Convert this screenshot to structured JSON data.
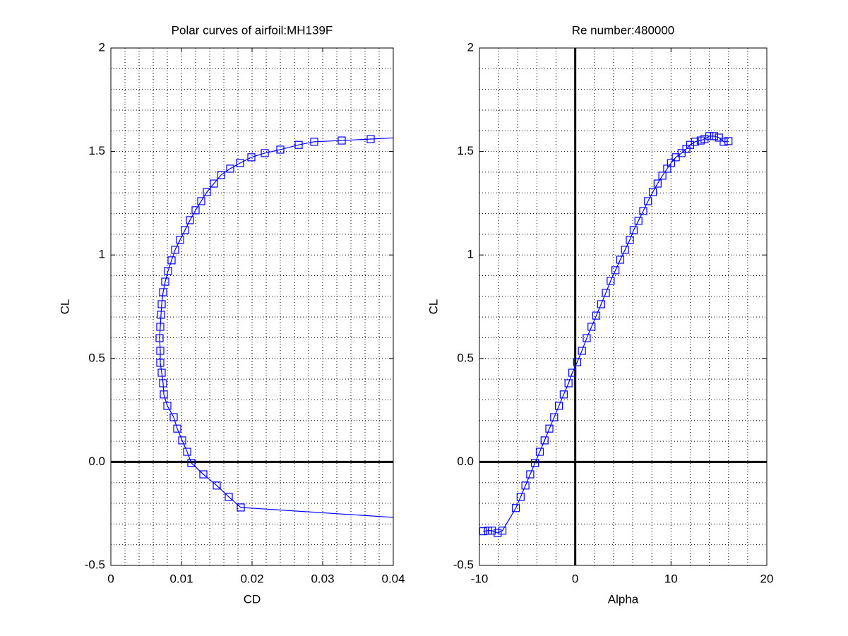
{
  "chart_data": [
    {
      "type": "line",
      "title": "Polar curves of airfoil:MH139F",
      "xlabel": "CD",
      "ylabel": "CL",
      "xlim": [
        0,
        0.04
      ],
      "xticks": [
        0,
        0.01,
        0.02,
        0.03,
        0.04
      ],
      "ylim": [
        -0.5,
        2
      ],
      "yticks": [
        -0.5,
        {
          "value": 0,
          "label": "0.0"
        },
        0.5,
        1,
        1.5,
        2
      ],
      "grid": true,
      "minor_divisions": 5,
      "zero_lines": true,
      "marker": "square",
      "series": [
        {
          "color": "#0000ff",
          "x": [
            0.068,
            0.0184,
            0.0167,
            0.015,
            0.0131,
            0.0114,
            0.0108,
            0.0101,
            0.0094,
            0.0089,
            0.008,
            0.0075,
            0.0074,
            0.0072,
            0.007,
            0.007,
            0.0069,
            0.007,
            0.0071,
            0.0072,
            0.0074,
            0.0077,
            0.0081,
            0.0086,
            0.0091,
            0.0098,
            0.0105,
            0.0112,
            0.012,
            0.0128,
            0.0136,
            0.0146,
            0.0156,
            0.0169,
            0.0183,
            0.0199,
            0.0218,
            0.024,
            0.0266,
            0.0288,
            0.0327,
            0.0368,
            0.045
          ],
          "values": [
            -0.33,
            -0.22,
            -0.169,
            -0.114,
            -0.06,
            -0.005,
            0.049,
            0.104,
            0.161,
            0.216,
            0.271,
            0.326,
            0.38,
            0.431,
            0.479,
            0.537,
            0.598,
            0.653,
            0.711,
            0.762,
            0.82,
            0.871,
            0.923,
            0.974,
            1.025,
            1.073,
            1.12,
            1.168,
            1.216,
            1.26,
            1.304,
            1.345,
            1.386,
            1.417,
            1.444,
            1.472,
            1.492,
            1.509,
            1.532,
            1.547,
            1.553,
            1.56,
            1.575
          ]
        }
      ]
    },
    {
      "type": "line",
      "title": "Re number:480000",
      "xlabel": "Alpha",
      "ylabel": "CL",
      "xlim": [
        -10,
        20
      ],
      "xticks": [
        -10,
        0,
        10,
        20
      ],
      "ylim": [
        -0.5,
        2
      ],
      "yticks": [
        -0.5,
        {
          "value": 0,
          "label": "0.0"
        },
        0.5,
        1,
        1.5,
        2
      ],
      "grid": true,
      "minor_divisions": 5,
      "zero_lines": true,
      "marker": "square",
      "series": [
        {
          "color": "#0000ff",
          "x": [
            -9.6,
            -9.1,
            -8.7,
            -8.1,
            -7.6,
            -6.2,
            -5.7,
            -5.2,
            -4.7,
            -4.2,
            -3.7,
            -3.2,
            -2.7,
            -2.2,
            -1.7,
            -1.2,
            -0.7,
            -0.3,
            0.2,
            0.7,
            1.2,
            1.7,
            2.2,
            2.7,
            3.2,
            3.7,
            4.2,
            4.7,
            5.2,
            5.7,
            6.1,
            6.6,
            7.1,
            7.6,
            8.1,
            8.6,
            9.1,
            9.6,
            10.0,
            10.5,
            11.1,
            11.6,
            12.0,
            12.5,
            13.1,
            13.5,
            14.0,
            14.5,
            15.0,
            15.5,
            16.0
          ],
          "values": [
            -0.335,
            -0.332,
            -0.332,
            -0.343,
            -0.332,
            -0.223,
            -0.169,
            -0.114,
            -0.06,
            -0.005,
            0.049,
            0.104,
            0.161,
            0.216,
            0.271,
            0.326,
            0.38,
            0.431,
            0.482,
            0.537,
            0.598,
            0.653,
            0.707,
            0.762,
            0.817,
            0.875,
            0.926,
            0.977,
            1.025,
            1.073,
            1.12,
            1.165,
            1.212,
            1.26,
            1.304,
            1.345,
            1.383,
            1.417,
            1.444,
            1.472,
            1.492,
            1.512,
            1.532,
            1.547,
            1.553,
            1.56,
            1.574,
            1.574,
            1.567,
            1.547,
            1.55
          ]
        }
      ]
    }
  ]
}
